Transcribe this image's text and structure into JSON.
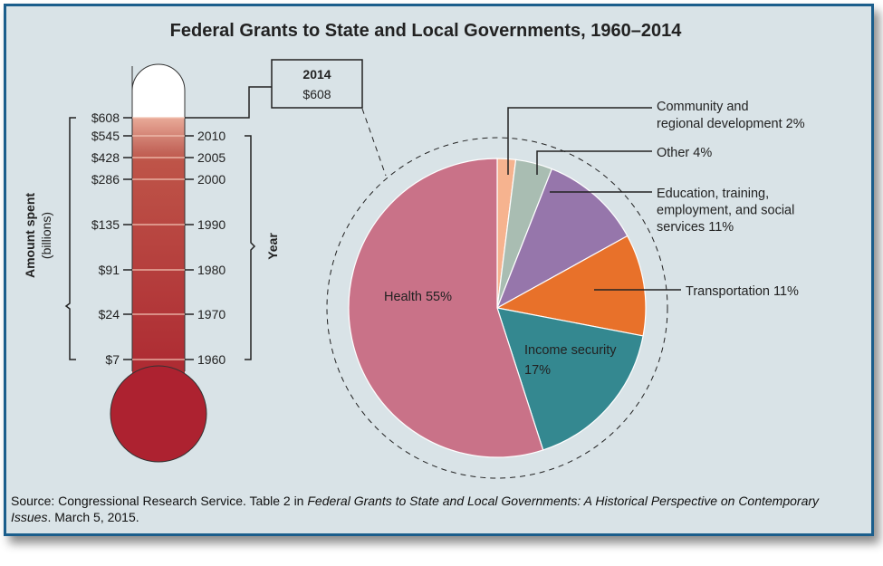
{
  "title": "Federal Grants to State and Local Governments, 1960–2014",
  "source": {
    "prefix": "Source: Congressional Research Service. Table 2 in ",
    "italic": "Federal Grants to State and Local Governments: A Historical Perspective on Contemporary Issues",
    "suffix": ". March 5, 2015."
  },
  "chart_data": [
    {
      "type": "bar",
      "style": "thermometer",
      "ylabel": "Amount spent (billions)",
      "xlabel": "Year",
      "categories": [
        "1960",
        "1970",
        "1980",
        "1990",
        "2000",
        "2005",
        "2010",
        "2014"
      ],
      "values": [
        7,
        24,
        91,
        135,
        286,
        428,
        545,
        608
      ],
      "value_labels": [
        "$7",
        "$24",
        "$91",
        "$135",
        "$286",
        "$428",
        "$545",
        "$608"
      ],
      "callout": {
        "year": "2014",
        "value": "$608"
      },
      "colors": {
        "fill": "#b0333a",
        "bulb": "#ad2230",
        "empty": "#ffffff"
      }
    },
    {
      "type": "pie",
      "slices": [
        {
          "label": "Community and regional development 2%",
          "value": 2,
          "color": "#f6b38f"
        },
        {
          "label": "Other 4%",
          "value": 4,
          "color": "#a9bdb2"
        },
        {
          "label": "Education, training, employment, and social services 11%",
          "value": 11,
          "color": "#9676ab"
        },
        {
          "label": "Transportation 11%",
          "value": 11,
          "color": "#e8712a"
        },
        {
          "label": "Income security 17%",
          "value": 17,
          "color": "#348890"
        },
        {
          "label": "Health 55%",
          "value": 55,
          "color": "#c97288"
        }
      ]
    }
  ]
}
